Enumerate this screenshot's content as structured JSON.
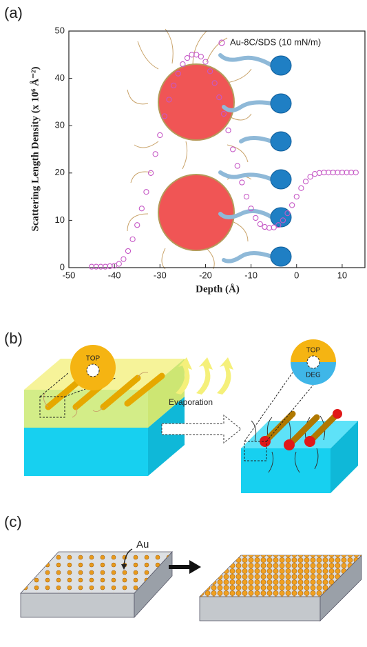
{
  "panel_labels": [
    "(a)",
    "(b)",
    "(c)"
  ],
  "chart_data": {
    "type": "scatter",
    "xlabel": "Depth (Å)",
    "ylabel": "Scattering Length Density (x 10⁶ Å⁻²)",
    "xlim": [
      -50,
      15
    ],
    "xticks": [
      -50,
      -40,
      -30,
      -20,
      -10,
      0,
      10
    ],
    "ylim": [
      0,
      50
    ],
    "yticks": [
      0,
      10,
      20,
      30,
      40,
      50
    ],
    "legend": "upper right",
    "series": [
      {
        "name": "Au-8C/SDS (10 mN/m)",
        "color": "#c659c6",
        "x": [
          -45,
          -44,
          -43,
          -42,
          -41,
          -40,
          -39,
          -38,
          -37,
          -36,
          -35,
          -34,
          -33,
          -32,
          -31,
          -30,
          -29,
          -28,
          -27,
          -26,
          -25,
          -24,
          -23,
          -22,
          -21,
          -20,
          -19,
          -18,
          -17,
          -16,
          -15,
          -14,
          -13,
          -12,
          -11,
          -10,
          -9,
          -8,
          -7,
          -6,
          -5,
          -4,
          -3,
          -2,
          -1,
          0,
          1,
          2,
          3,
          4,
          5,
          6,
          7,
          8,
          9,
          10,
          11,
          12,
          13
        ],
        "values": [
          0.2,
          0.2,
          0.2,
          0.2,
          0.3,
          0.4,
          0.8,
          1.8,
          3.5,
          6,
          9,
          12.5,
          16,
          20,
          24,
          28,
          32,
          35.5,
          38.5,
          41,
          43,
          44.3,
          45,
          45,
          44.6,
          43.5,
          41.5,
          39,
          36,
          32.5,
          29,
          25,
          21.5,
          18,
          15,
          12.5,
          10.5,
          9.2,
          8.6,
          8.4,
          8.5,
          9,
          10,
          11.5,
          13.2,
          15,
          16.8,
          18.2,
          19.2,
          19.8,
          20,
          20.1,
          20.1,
          20.1,
          20.1,
          20.1,
          20.1,
          20.1,
          20.1
        ]
      }
    ]
  },
  "diagram_b": {
    "left_circle": "TOP",
    "right_circle_top": "TOP",
    "right_circle_bottom": "DEG",
    "arrow_label": "Evaporation"
  },
  "diagram_c": {
    "label": "Au"
  }
}
